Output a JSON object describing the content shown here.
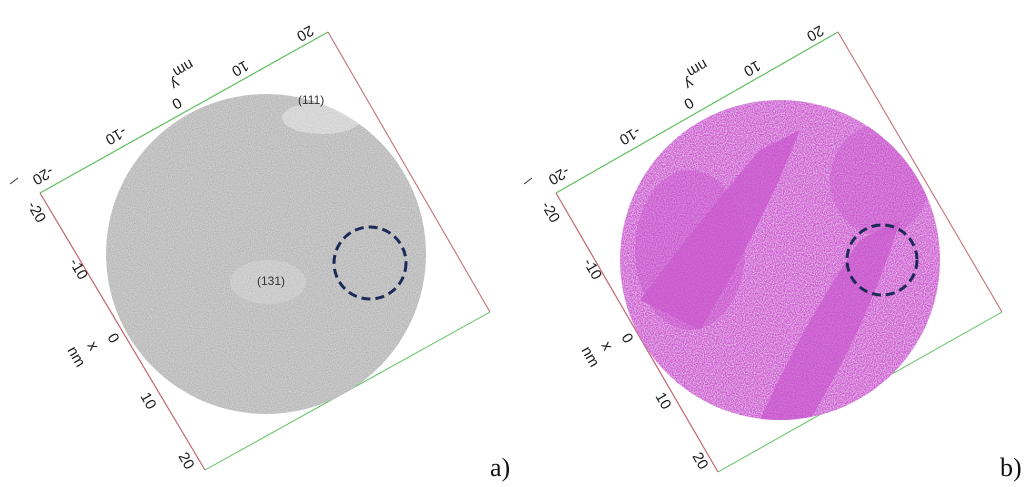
{
  "colors": {
    "panel_a_atoms": "#8c8c8c",
    "panel_b_atoms": "#b11fb5",
    "panel_b_background_atoms": "#c9a0cd",
    "x_axis_line": "#c06470",
    "y_axis_line": "#5cc05c",
    "marker_circle": "#1c2a57"
  },
  "panels": [
    {
      "label": "a)",
      "y_axis": {
        "title": "y",
        "unit": "nm",
        "ticks": [
          "-20",
          "-10",
          "0",
          "10",
          "20"
        ]
      },
      "x_axis": {
        "title": "x",
        "unit": "nm",
        "ticks": [
          "-20",
          "-10",
          "0",
          "10",
          "20"
        ]
      },
      "annotations": [
        "(111)",
        "(131)"
      ],
      "marker": "dashed-circle"
    },
    {
      "label": "b)",
      "y_axis": {
        "title": "y",
        "unit": "nm",
        "ticks": [
          "-20",
          "-10",
          "0",
          "10",
          "20"
        ]
      },
      "x_axis": {
        "title": "x",
        "unit": "nm",
        "ticks": [
          "-20",
          "-10",
          "0",
          "10",
          "20"
        ]
      },
      "annotations": [],
      "marker": "dashed-circle"
    }
  ]
}
